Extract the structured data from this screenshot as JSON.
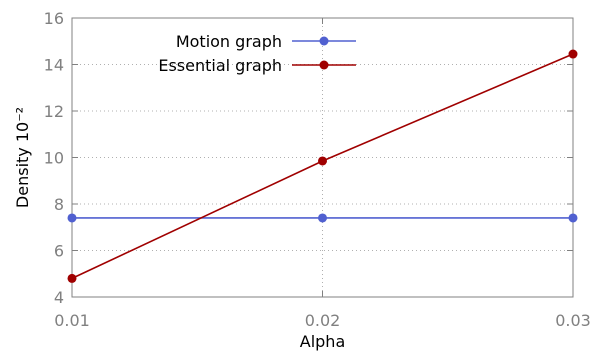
{
  "chart_data": {
    "type": "line",
    "xlabel": "Alpha",
    "ylabel": "Density 10⁻²",
    "x": [
      0.01,
      0.02,
      0.03
    ],
    "x_tick_labels": [
      "0.01",
      "0.02",
      "0.03"
    ],
    "xlim": [
      0.01,
      0.03
    ],
    "y_ticks": [
      4,
      6,
      8,
      10,
      12,
      14,
      16
    ],
    "ylim": [
      4,
      16
    ],
    "grid": true,
    "legend_position": "top-left",
    "series": [
      {
        "name": "Motion graph",
        "color": "#5060d0",
        "values": [
          7.4,
          7.4,
          7.4
        ]
      },
      {
        "name": "Essential graph",
        "color": "#a00000",
        "values": [
          4.8,
          9.85,
          14.45
        ]
      }
    ]
  }
}
